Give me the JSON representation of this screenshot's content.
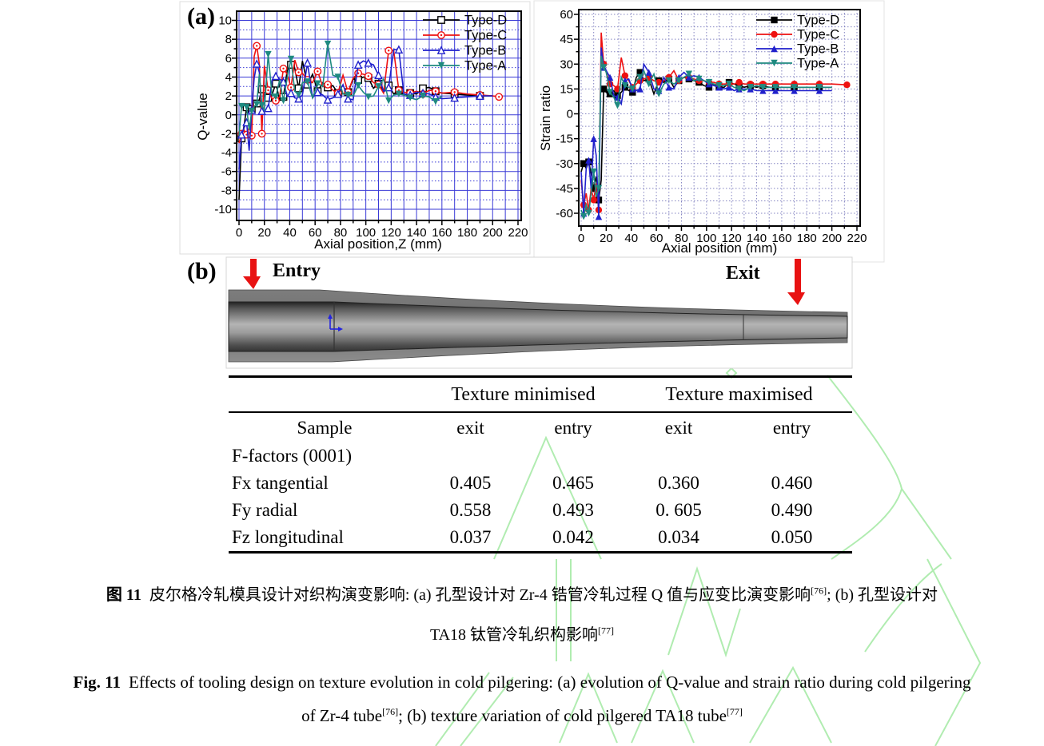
{
  "panels": {
    "a_label": "(a)",
    "b_label": "(b)"
  },
  "tube": {
    "entry_label": "Entry",
    "exit_label": "Exit",
    "arrow_color": "#e81212"
  },
  "watermark_color": "#a8eaa8",
  "table": {
    "group_headers": [
      "Texture minimised",
      "Texture maximised"
    ],
    "col_headers": [
      "Sample",
      "exit",
      "entry",
      "exit",
      "entry"
    ],
    "rows": [
      {
        "label": "F-factors (0001)",
        "values": [
          "",
          "",
          "",
          ""
        ]
      },
      {
        "label": "Fx tangential",
        "values": [
          "0.405",
          "0.465",
          "0.360",
          "0.460"
        ]
      },
      {
        "label": "Fy radial",
        "values": [
          "0.558",
          "0.493",
          "0. 605",
          "0.490"
        ]
      },
      {
        "label": "Fz longitudinal",
        "values": [
          "0.037",
          "0.042",
          "0.034",
          "0.050"
        ]
      }
    ]
  },
  "captions": {
    "zh_label": "图 11",
    "zh_line1": "皮尔格冷轧模具设计对织构演变影响: (a) 孔型设计对 Zr-4 锆管冷轧过程 Q 值与应变比演变影响",
    "zh_ref1": "[76]",
    "zh_tail1": "; (b) 孔型设计对",
    "zh_line2": "TA18 钛管冷轧织构影响",
    "zh_ref2": "[77]",
    "en_label": "Fig. 11",
    "en_line1": "Effects of tooling design on texture evolution in cold pilgering: (a) evolution of Q-value and strain ratio during cold pilgering",
    "en_line2a": "of Zr-4 tube",
    "en_ref1": "[76]",
    "en_line2b": "; (b) texture variation of cold pilgered TA18 tube",
    "en_ref2": "[77]"
  },
  "chart_data": [
    {
      "name": "q-value-chart",
      "type": "line",
      "title": "",
      "xlabel": "Axial position,Z (mm)",
      "ylabel": "Q-value",
      "xlim": [
        -2,
        222
      ],
      "ylim": [
        -11,
        11
      ],
      "legend_position": "top-right",
      "grid": {
        "x_step": 10,
        "x_major": 20,
        "x_range": [
          0,
          220
        ],
        "y_step": 2,
        "y_minor": 1,
        "y_range": [
          -10,
          10
        ],
        "style": "solid",
        "color": "#3a3ad6"
      },
      "x": [
        0,
        2,
        4,
        6,
        8,
        10,
        12,
        14,
        16,
        18,
        20,
        23,
        26,
        29,
        32,
        35,
        38,
        41,
        44,
        47,
        50,
        54,
        58,
        62,
        66,
        70,
        74,
        78,
        82,
        86,
        90,
        94,
        98,
        102,
        106,
        110,
        114,
        118,
        122,
        126,
        130,
        135,
        140,
        145,
        150,
        155,
        160,
        170,
        180,
        190,
        200,
        205
      ],
      "series": [
        {
          "name": "Type-D",
          "color": "#000000",
          "marker": "square-open",
          "values": [
            -9,
            -2.5,
            -1.2,
            0.8,
            1,
            0.6,
            0.9,
            1.2,
            1.6,
            2.7,
            2.6,
            1.8,
            2.1,
            3.3,
            1.6,
            1.9,
            4.7,
            5.3,
            4.9,
            2.8,
            5.7,
            3.2,
            4.3,
            2.5,
            3.4,
            2.9,
            3.1,
            2.3,
            2.2,
            2.4,
            3.8,
            3.7,
            4,
            3.9,
            2.8,
            3.3,
            2.4,
            3.1,
            2.2,
            2.6,
            2.1,
            2.3,
            2.2,
            2.8,
            2.9,
            2.5,
            2.3,
            2.2,
            2.1,
            2,
            2,
            null
          ]
        },
        {
          "name": "Type-C",
          "color": "#ee1111",
          "marker": "circle-open",
          "values": [
            -3,
            -2,
            -1.6,
            -2.1,
            -1.3,
            -2.2,
            6.2,
            7.3,
            5.4,
            -2,
            5.2,
            2.6,
            1.7,
            1.5,
            1.9,
            4.9,
            4.3,
            2.9,
            5.8,
            4.5,
            4.4,
            3.7,
            3.4,
            4.6,
            3,
            3.2,
            2.6,
            2.3,
            4.2,
            2.4,
            3.9,
            4.4,
            4.3,
            4.1,
            3.4,
            3.2,
            2.3,
            6.8,
            6.8,
            2.6,
            2.4,
            2.3,
            2.5,
            2.2,
            2.6,
            2.5,
            2.3,
            2.4,
            2.2,
            2.1,
            2,
            1.9
          ]
        },
        {
          "name": "Type-B",
          "color": "#2121cc",
          "marker": "triangle-open",
          "values": [
            -5.8,
            -2.1,
            -1.4,
            -0.8,
            -3.8,
            0.5,
            3.9,
            5.4,
            4.5,
            0.4,
            0.3,
            0.7,
            3.6,
            4.1,
            3.8,
            3.5,
            2,
            2.3,
            1.8,
            1.7,
            2.1,
            5.5,
            1.8,
            2.4,
            2.1,
            1.6,
            1.8,
            2.2,
            3.2,
            1.7,
            1.6,
            5.3,
            5.7,
            5.5,
            5.3,
            4.2,
            2.5,
            2.9,
            6.9,
            6.9,
            2.2,
            2.1,
            2.4,
            2.3,
            2.2,
            1.9,
            1.7,
            1.8,
            1.9,
            2,
            2,
            null
          ]
        },
        {
          "name": "Type-A",
          "color": "#1f8a80",
          "marker": "triangle-down-filled",
          "values": [
            -2.2,
            0.9,
            1,
            0.8,
            -1.6,
            0.4,
            0.9,
            1.1,
            4.3,
            1,
            0.5,
            6.4,
            2.1,
            1.9,
            3.7,
            1.5,
            3.9,
            5.9,
            2.5,
            2.1,
            3.4,
            3.5,
            1.8,
            3.3,
            3,
            7.5,
            4.2,
            4,
            2.2,
            2.1,
            2,
            3.1,
            2.4,
            1.9,
            2,
            3,
            3.8,
            1.5,
            2.1,
            2.2,
            2.1,
            1.8,
            1.6,
            2,
            1.9,
            1.4,
            2,
            null,
            null,
            null,
            null,
            null
          ]
        }
      ]
    },
    {
      "name": "strain-ratio-chart",
      "type": "line",
      "title": "",
      "xlabel": "Axial position (mm)",
      "ylabel": "Strain ratio",
      "xlim": [
        -2,
        222
      ],
      "ylim": [
        -67,
        63
      ],
      "legend_position": "top-right",
      "grid": {
        "x_step": 10,
        "x_major": 20,
        "x_range": [
          0,
          220
        ],
        "y_step": 15,
        "y_minor": 7.5,
        "y_range": [
          -60,
          60
        ],
        "style": "dotted",
        "color": "#8585c2"
      },
      "x": [
        0,
        2,
        4,
        6,
        8,
        10,
        12,
        14,
        16,
        18,
        20,
        23,
        26,
        29,
        32,
        35,
        38,
        41,
        44,
        47,
        50,
        54,
        58,
        62,
        66,
        70,
        74,
        78,
        82,
        86,
        90,
        94,
        98,
        102,
        106,
        110,
        114,
        118,
        122,
        126,
        130,
        135,
        140,
        145,
        150,
        155,
        160,
        170,
        180,
        190,
        200,
        212
      ],
      "series": [
        {
          "name": "Type-D",
          "color": "#000000",
          "marker": "square-filled",
          "values": [
            -35,
            -30,
            -33,
            -29,
            -36,
            -45,
            -38,
            -52,
            -40,
            15,
            13,
            12,
            14,
            11,
            13,
            16,
            14,
            13,
            22,
            25,
            20,
            21,
            12,
            20,
            19,
            21,
            16,
            20,
            22,
            21,
            20,
            19,
            17,
            16,
            18,
            16,
            16,
            19,
            18,
            17,
            16,
            17,
            16,
            17,
            16,
            16,
            16,
            16,
            16,
            16,
            16,
            null
          ]
        },
        {
          "name": "Type-C",
          "color": "#ee1111",
          "marker": "circle-filled",
          "values": [
            -40,
            -55,
            -48,
            -58,
            -45,
            -52,
            -42,
            -58,
            49,
            30,
            25,
            18,
            17,
            15,
            34,
            23,
            20,
            16,
            18,
            20,
            21,
            22,
            20,
            19,
            20,
            22,
            26,
            20,
            22,
            22,
            21,
            20,
            20,
            19,
            19,
            18,
            18,
            18,
            18,
            19,
            18,
            18,
            18,
            18,
            18,
            18,
            18,
            18,
            18,
            18,
            18,
            17.5
          ]
        },
        {
          "name": "Type-B",
          "color": "#2121cc",
          "marker": "triangle-filled",
          "values": [
            -35,
            -60,
            -33,
            -28,
            -45,
            -15,
            -25,
            -62,
            40,
            28,
            26,
            22,
            11,
            10,
            6,
            20,
            21,
            15,
            14,
            15,
            30,
            25,
            15,
            14,
            22,
            16,
            15,
            22,
            25,
            22,
            23,
            22,
            20,
            18,
            17,
            16,
            15,
            16,
            14,
            15,
            15,
            15,
            14,
            14,
            14,
            14,
            14,
            14,
            14,
            14,
            14,
            null
          ]
        },
        {
          "name": "Type-A",
          "color": "#1f8a80",
          "marker": "triangle-down-filled",
          "values": [
            -58,
            -62,
            -55,
            -60,
            -48,
            -35,
            -50,
            -45,
            35,
            28,
            25,
            13,
            10,
            5,
            22,
            17,
            16,
            15,
            20,
            22,
            26,
            18,
            24,
            12,
            18,
            20,
            18,
            20,
            22,
            24,
            20,
            21,
            20,
            19,
            18,
            17,
            17,
            18,
            16,
            15,
            14,
            16,
            17,
            16,
            16,
            16,
            16,
            16,
            16,
            16,
            16,
            null
          ]
        }
      ]
    }
  ]
}
